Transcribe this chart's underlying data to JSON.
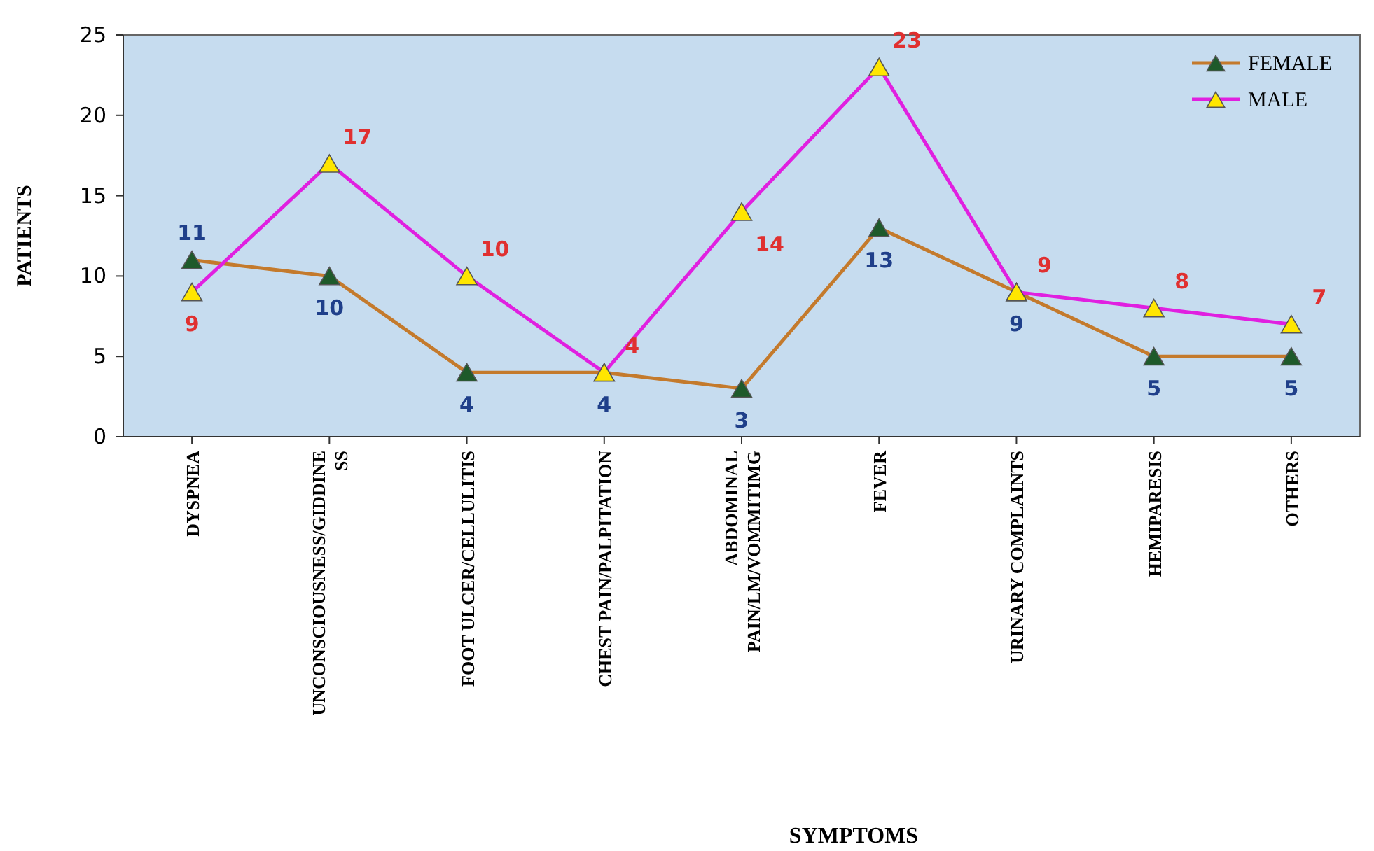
{
  "chart_data": {
    "type": "line",
    "xlabel": "SYMPTOMS",
    "ylabel": "PATIENTS",
    "categories": [
      "DYSPNEA",
      "UNCONSCIOUSNESS/GIDDINE\nSS",
      "FOOT ULCER/CELLULITIS",
      "CHEST PAIN/PALPITATION",
      "ABDOMINAL\nPAIN/LM/VOMMITIMG",
      "FEVER",
      "URINARY COMPLAINTS",
      "HEMIPARESIS",
      "OTHERS"
    ],
    "series": [
      {
        "name": "FEMALE",
        "color": "#c47a2c",
        "values": [
          11,
          10,
          4,
          4,
          3,
          13,
          9,
          5,
          5
        ]
      },
      {
        "name": "MALE",
        "color": "#e020e0",
        "values": [
          9,
          17,
          10,
          4,
          14,
          23,
          9,
          8,
          7
        ]
      }
    ],
    "ylim": [
      0,
      25
    ],
    "yticks": [
      0,
      5,
      10,
      15,
      20,
      25
    ],
    "marker": "triangle",
    "legend": "top right",
    "data_labels": true
  }
}
